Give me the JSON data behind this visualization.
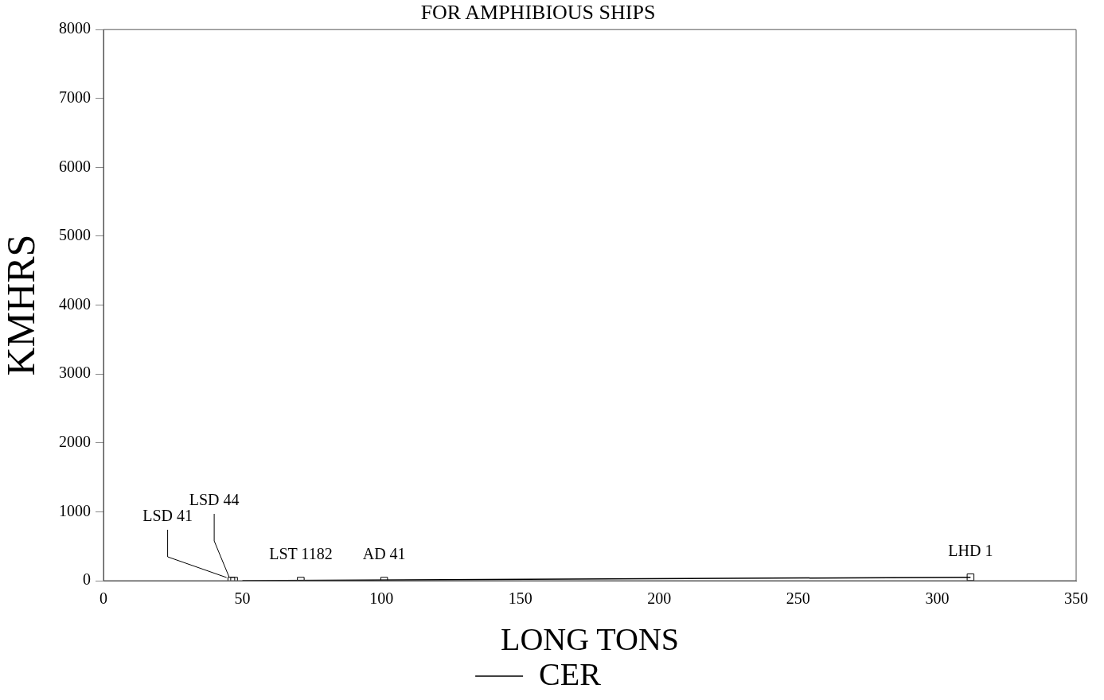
{
  "chart_data": {
    "type": "scatter",
    "title": "FOR AMPHIBIOUS SHIPS",
    "xlabel": "LONG TONS",
    "ylabel": "KMHRS",
    "series": [
      {
        "color": "#000000",
        "x": [
          46,
          47,
          71,
          101,
          312
        ],
        "values": [
          0,
          0,
          0,
          0,
          50
        ],
        "marker": "square"
      },
      {
        "type": "line",
        "name": "CER",
        "color": "#000000",
        "x": [
          50,
          312
        ],
        "values": [
          0,
          50
        ]
      }
    ],
    "annotations": [
      {
        "text": "LSD 41",
        "x": 46,
        "y": 0
      },
      {
        "text": "LSD 44",
        "x": 47,
        "y": 0
      },
      {
        "text": "LST 1182",
        "x": 71,
        "y": 0
      },
      {
        "text": "AD 41",
        "x": 101,
        "y": 0
      },
      {
        "text": "LHD 1",
        "x": 312,
        "y": 50
      }
    ],
    "xlim": [
      0,
      350
    ],
    "xticks": [
      0,
      50,
      100,
      150,
      200,
      250,
      300,
      350
    ],
    "ylim": [
      0,
      8000
    ],
    "yticks": [
      0,
      1000,
      2000,
      3000,
      4000,
      5000,
      6000,
      7000,
      8000
    ],
    "grid": false,
    "legend": "bottom"
  }
}
